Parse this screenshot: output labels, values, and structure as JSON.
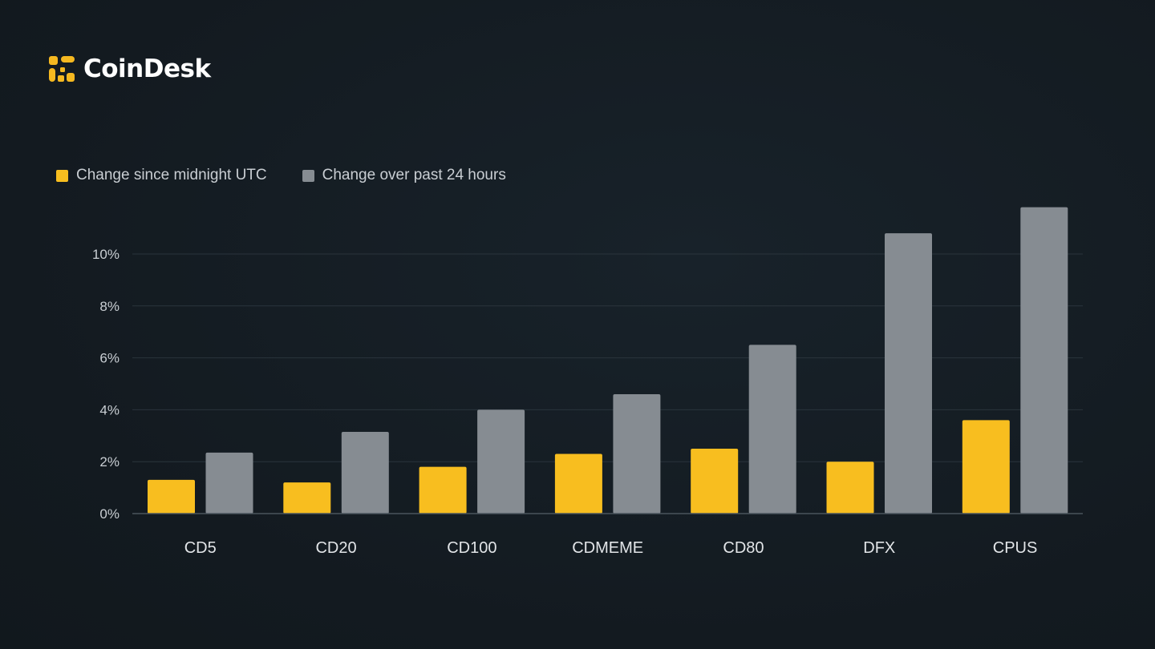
{
  "brand": {
    "name": "CoinDesk",
    "icon": "coindesk-logo-icon",
    "accent": "#f5b820"
  },
  "chart_data": {
    "type": "bar",
    "categories": [
      "CD5",
      "CD20",
      "CD100",
      "CDMEME",
      "CD80",
      "DFX",
      "CPUS"
    ],
    "series": [
      {
        "name": "Change since midnight UTC",
        "color": "#f8be1f",
        "values": [
          1.3,
          1.2,
          1.8,
          2.3,
          2.5,
          2.0,
          3.6
        ]
      },
      {
        "name": "Change over past 24 hours",
        "color": "#868c92",
        "values": [
          2.35,
          3.15,
          4.0,
          4.6,
          6.5,
          10.8,
          11.8
        ]
      }
    ],
    "yticks": [
      "0%",
      "2%",
      "4%",
      "6%",
      "8%",
      "10%"
    ],
    "ytick_values": [
      0,
      2,
      4,
      6,
      8,
      10
    ],
    "ylim": [
      0,
      12
    ],
    "grid": true,
    "legend_position": "top-left"
  }
}
